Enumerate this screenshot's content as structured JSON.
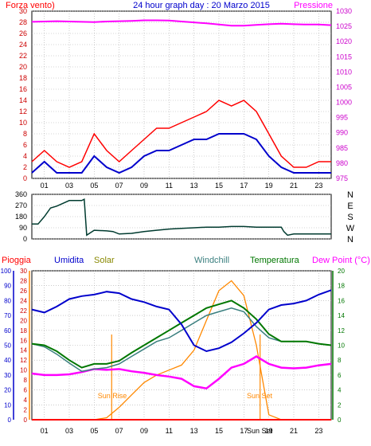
{
  "header": {
    "left_label": "Forza vento)",
    "title": "24 hour graph day : 20 Marzo 2015",
    "right_label": "Pressione"
  },
  "colors": {
    "wind_gust": "#ff0000",
    "wind_avg": "#0000cc",
    "pressure": "#ff00ff",
    "direction": "#003b2f",
    "humidity": "#0000cc",
    "temperature": "#007700",
    "windchill": "#3a7f7f",
    "dewpoint": "#ff00ff",
    "solar": "#ff8800",
    "rain": "#ff0000",
    "grid": "#aaaaaa"
  },
  "chart_data": [
    {
      "type": "line",
      "name": "wind-pressure",
      "ylim_left": [
        0,
        30
      ],
      "ylim_right": [
        975,
        1030
      ],
      "left_ticks": [
        "0",
        "2",
        "4",
        "6",
        "8",
        "10",
        "12",
        "14",
        "16",
        "18",
        "20",
        "22",
        "24",
        "26",
        "28",
        "30"
      ],
      "right_ticks": [
        "975",
        "980",
        "985",
        "990",
        "995",
        "1000",
        "1005",
        "1010",
        "1015",
        "1020",
        "1025",
        "1030"
      ],
      "x_ticks": [
        "01",
        "03",
        "05",
        "07",
        "09",
        "11",
        "13",
        "15",
        "17",
        "19",
        "21",
        "23"
      ],
      "hours": [
        0,
        1,
        2,
        3,
        4,
        5,
        6,
        7,
        8,
        9,
        10,
        11,
        12,
        13,
        14,
        15,
        16,
        17,
        18,
        19,
        20,
        21,
        22,
        23,
        24
      ],
      "series": [
        {
          "key": "gust",
          "values": [
            3,
            5,
            3,
            2,
            3,
            8,
            5,
            3,
            5,
            7,
            9,
            9,
            10,
            11,
            12,
            14,
            13,
            14,
            12,
            8,
            4,
            2,
            2,
            3,
            3
          ]
        },
        {
          "key": "avg",
          "values": [
            1,
            3,
            1,
            1,
            1,
            4,
            2,
            1,
            2,
            4,
            5,
            5,
            6,
            7,
            7,
            8,
            8,
            8,
            7,
            4,
            2,
            1,
            1,
            1,
            1
          ]
        },
        {
          "key": "pressure",
          "values": [
            1026.5,
            1026.6,
            1026.7,
            1026.6,
            1026.5,
            1026.4,
            1026.6,
            1026.7,
            1026.8,
            1027.0,
            1027.0,
            1026.9,
            1026.6,
            1026.3,
            1026.0,
            1025.6,
            1025.2,
            1025.2,
            1025.5,
            1025.7,
            1025.9,
            1025.7,
            1025.6,
            1025.6,
            1025.4
          ]
        }
      ]
    },
    {
      "type": "line",
      "name": "wind-direction",
      "ylim_left": [
        0,
        360
      ],
      "left_ticks": [
        "0",
        "90",
        "180",
        "270",
        "360"
      ],
      "right_ticks": [
        "N",
        "W",
        "S",
        "E",
        "N"
      ],
      "hours": [
        0,
        0.5,
        1,
        1.5,
        2,
        3,
        4,
        4.2,
        4.4,
        5,
        6,
        6.5,
        7,
        8,
        9,
        10,
        11,
        12,
        13,
        14,
        15,
        16,
        17,
        18,
        19,
        20,
        20.2,
        20.5,
        21,
        22,
        23,
        24
      ],
      "values": [
        120,
        120,
        180,
        250,
        265,
        310,
        310,
        320,
        30,
        70,
        65,
        60,
        40,
        45,
        60,
        70,
        80,
        85,
        90,
        95,
        95,
        100,
        100,
        95,
        95,
        95,
        60,
        30,
        40,
        40,
        40,
        40
      ]
    },
    {
      "type": "line",
      "name": "multi-sensor",
      "x_ticks": [
        "01",
        "03",
        "05",
        "07",
        "09",
        "11",
        "13",
        "15",
        "17",
        "19",
        "21",
        "23"
      ],
      "left_ticks": [
        "0",
        "10",
        "20",
        "30",
        "40",
        "50",
        "60",
        "70",
        "80",
        "90",
        "100"
      ],
      "solar_ticks": [
        "0",
        "2",
        "4",
        "6",
        "8",
        "10",
        "12",
        "14",
        "16",
        "18",
        "20",
        "22",
        "24",
        "26",
        "28",
        "30"
      ],
      "temp_ticks": [
        "0",
        "2",
        "4",
        "6",
        "8",
        "10",
        "12",
        "14",
        "16",
        "18",
        "20"
      ],
      "legend": [
        "Pioggia",
        "Umidita",
        "Solar",
        "Windchill",
        "Temperatura",
        "Dew Point (°C)"
      ],
      "annotations": {
        "sun_rise": "Sun Rise",
        "sun_set": "Sun Set"
      },
      "sun_rise_hour": 6.4,
      "sun_set_hour": 18.3,
      "humidity_ylim": [
        0,
        100
      ],
      "temp_ylim": [
        0,
        20
      ],
      "solar_ylim": [
        0,
        30
      ],
      "hours": [
        0,
        1,
        2,
        3,
        4,
        5,
        6,
        7,
        8,
        9,
        10,
        11,
        12,
        13,
        14,
        15,
        16,
        17,
        18,
        19,
        20,
        21,
        22,
        23,
        24
      ],
      "series": [
        {
          "key": "humidity",
          "values": [
            74,
            72,
            76,
            81,
            83,
            84,
            86,
            85,
            81,
            79,
            76,
            74,
            64,
            50,
            46,
            48,
            52,
            58,
            65,
            74,
            77,
            78,
            80,
            84,
            87
          ]
        },
        {
          "key": "temperature",
          "values": [
            10.2,
            10.0,
            9.2,
            8.0,
            7.0,
            7.5,
            7.5,
            7.9,
            9.0,
            10.0,
            11.0,
            12.0,
            13.0,
            14.0,
            15.0,
            15.5,
            16.0,
            15.0,
            13.5,
            11.5,
            10.5,
            10.5,
            10.5,
            10.2,
            10.0
          ]
        },
        {
          "key": "windchill",
          "values": [
            10.2,
            9.8,
            8.8,
            7.6,
            6.5,
            6.8,
            7.0,
            7.5,
            8.5,
            9.5,
            10.5,
            11.0,
            12.0,
            13.0,
            14.0,
            14.5,
            15.0,
            14.5,
            12.5,
            11.0,
            10.5,
            10.5,
            10.5,
            10.2,
            10.0
          ]
        },
        {
          "key": "dewpoint",
          "values": [
            6.2,
            6.0,
            6.0,
            6.1,
            6.4,
            6.8,
            6.7,
            6.8,
            6.5,
            6.3,
            6.0,
            5.8,
            5.5,
            4.5,
            4.2,
            5.5,
            7.0,
            7.5,
            8.5,
            7.5,
            7.0,
            6.9,
            7.0,
            7.3,
            7.5
          ]
        },
        {
          "key": "solar",
          "values": [
            0,
            0,
            0,
            0,
            0,
            0,
            0.4,
            2.5,
            5.0,
            7.5,
            9.0,
            10.0,
            11.0,
            14.0,
            20.0,
            26.0,
            28.0,
            25.0,
            15.0,
            1.0,
            0,
            0,
            0,
            0,
            0
          ]
        },
        {
          "key": "rain",
          "values": [
            0,
            0,
            0,
            0,
            0,
            0,
            0,
            0,
            0,
            0,
            0,
            0,
            0,
            0,
            0,
            0,
            0,
            0,
            0,
            0,
            0,
            0,
            0,
            0,
            0
          ]
        }
      ]
    }
  ],
  "dir_labels": [
    "N",
    "W",
    "S",
    "E",
    "N"
  ],
  "bottom_extra": "Sun Set"
}
